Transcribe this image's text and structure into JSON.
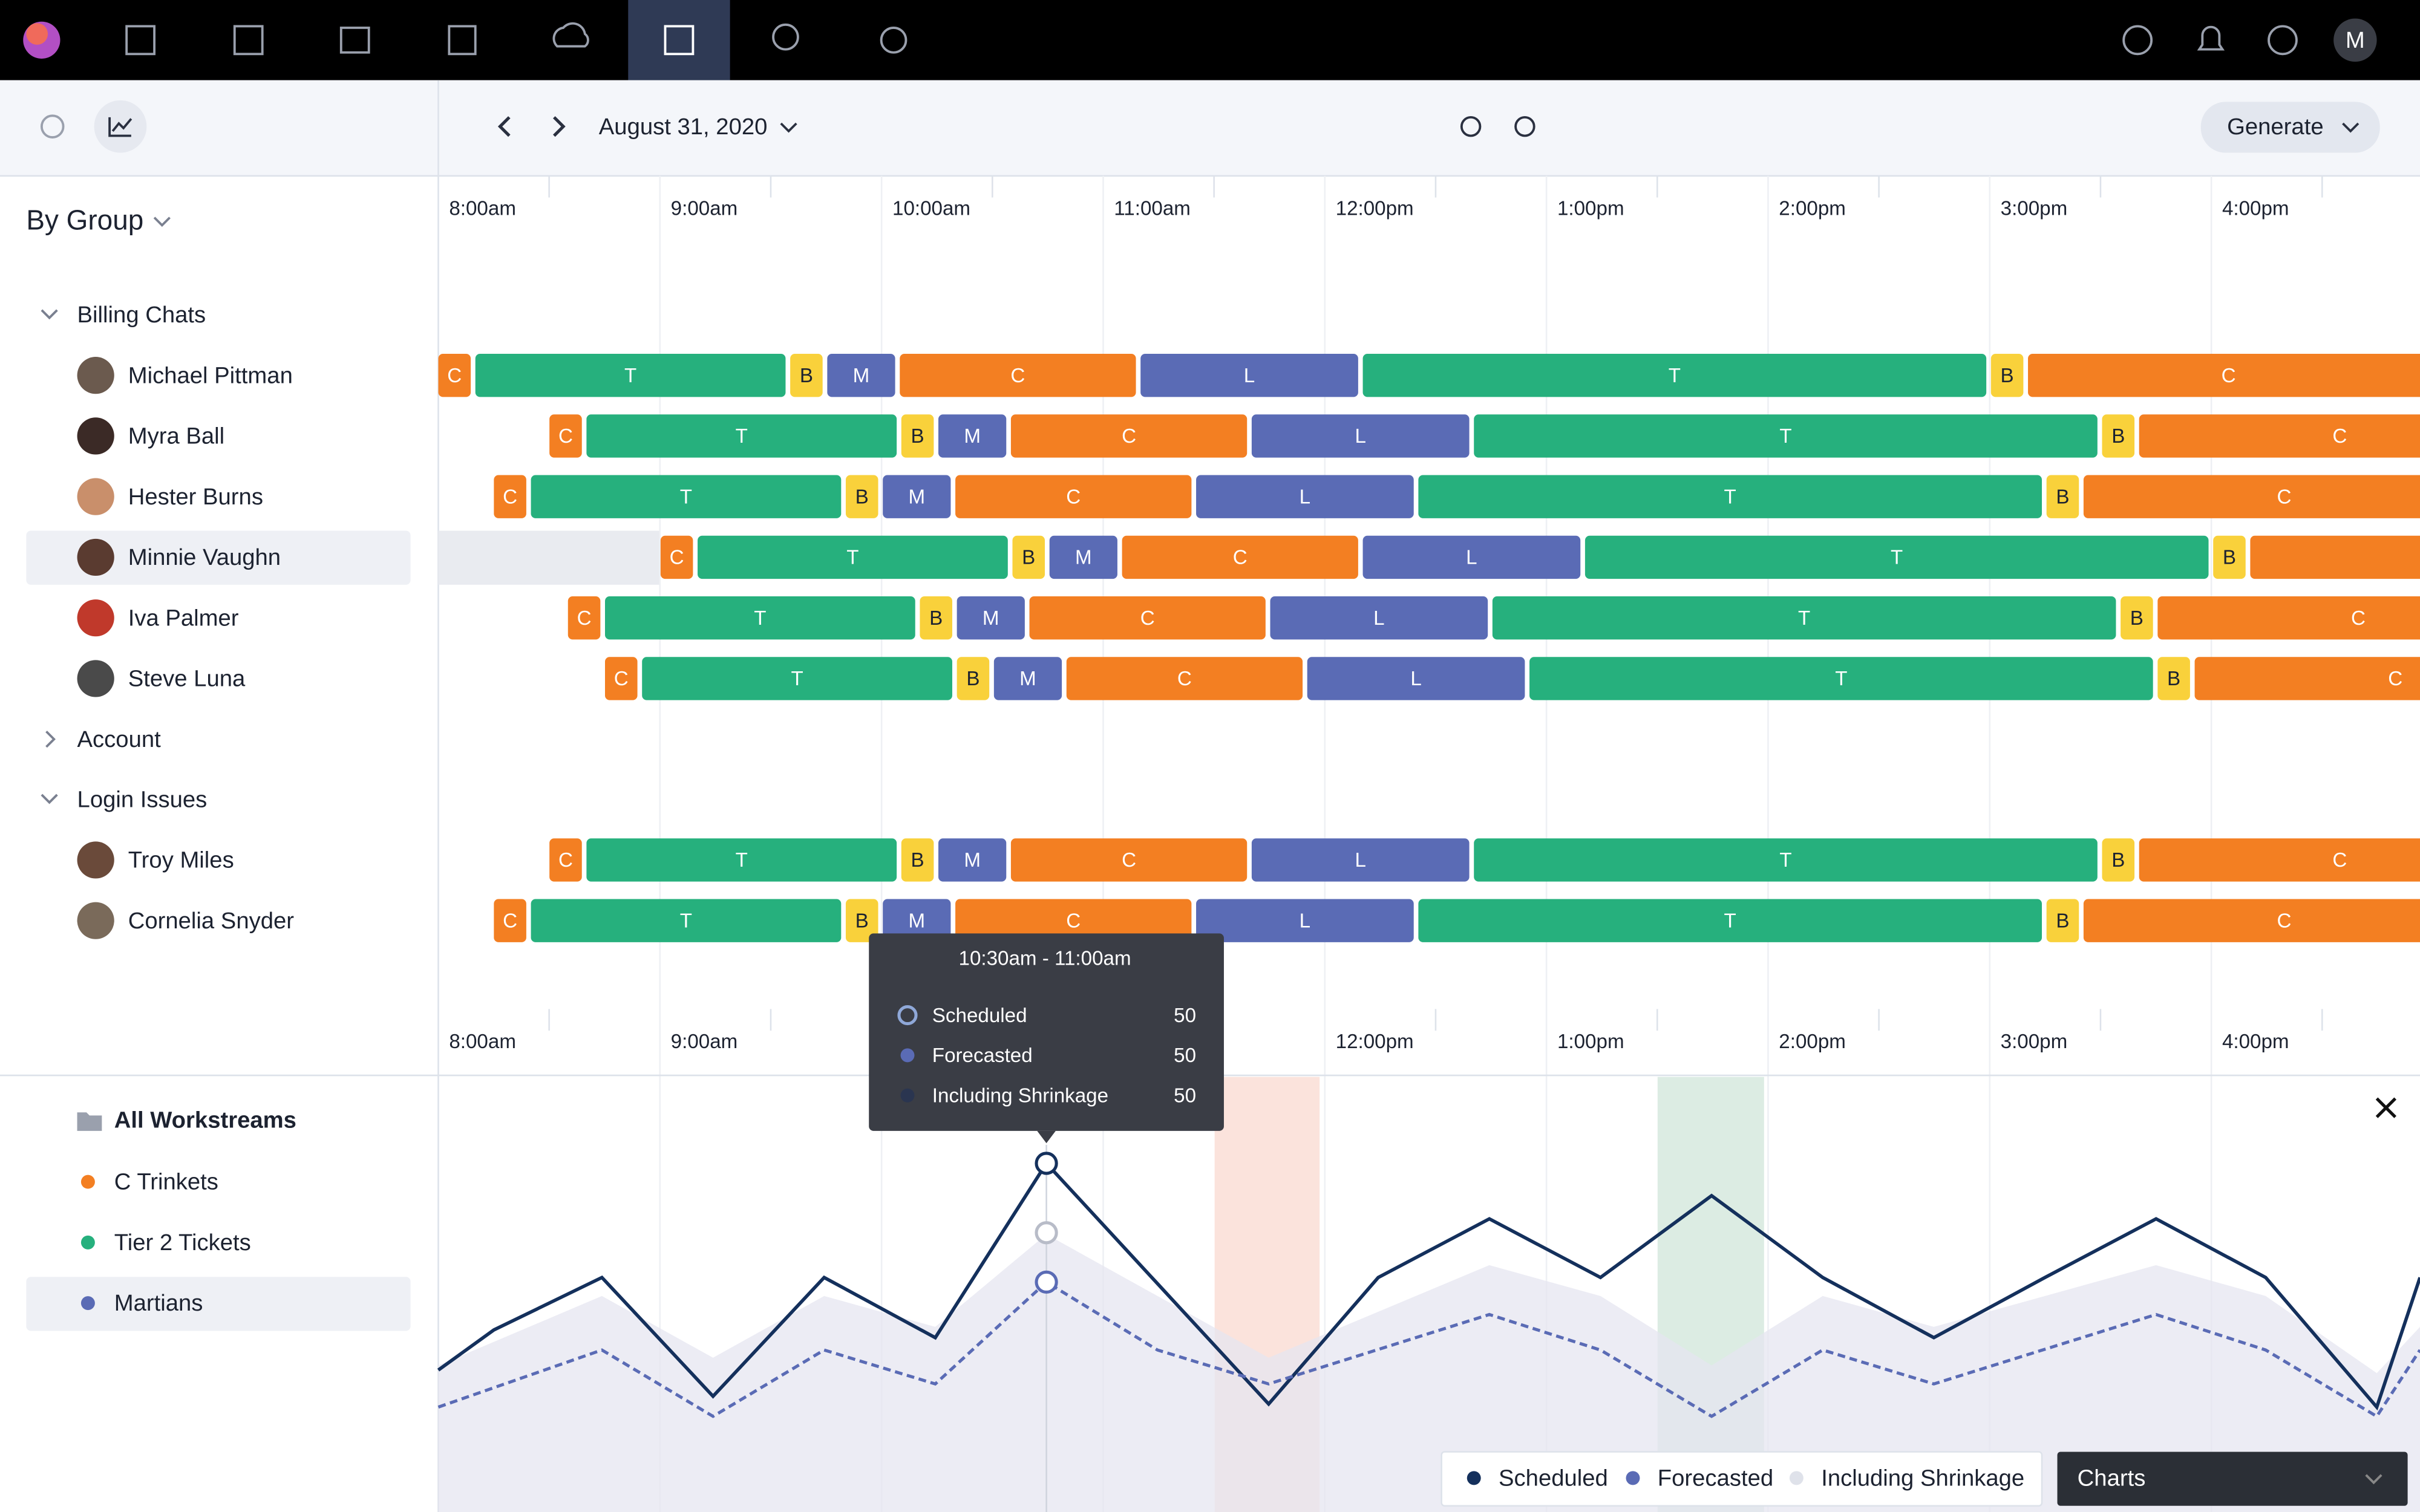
{
  "nav": {
    "avatar": "M"
  },
  "toolbar": {
    "date": "August 31, 2020",
    "generate": "Generate"
  },
  "sidebar": {
    "group_by": "By Group",
    "groups": [
      {
        "name": "Billing Chats",
        "people": [
          {
            "name": "Michael Pittman",
            "blocks": [
              "C",
              "T",
              "B",
              "M",
              "C",
              "L",
              "T",
              "B",
              "C"
            ]
          },
          {
            "name": "Myra Ball",
            "blocks": [
              "C",
              "T",
              "B",
              "M",
              "C",
              "L",
              "T",
              "B",
              "C"
            ]
          },
          {
            "name": "Hester Burns",
            "blocks": [
              "C",
              "T",
              "B",
              "M",
              "C",
              "L",
              "T",
              "B",
              "C"
            ]
          },
          {
            "name": "Minnie Vaughn",
            "blocks": [
              "C",
              "T",
              "B",
              "M",
              "C",
              "L",
              "T",
              "B",
              "C"
            ]
          },
          {
            "name": "Iva Palmer",
            "blocks": [
              "C",
              "T",
              "B",
              "M",
              "C",
              "L",
              "T",
              "B",
              "C"
            ]
          },
          {
            "name": "Steve Luna",
            "blocks": [
              "C",
              "T",
              "B",
              "M",
              "C",
              "L",
              "T",
              "B",
              "C"
            ]
          }
        ]
      },
      {
        "name": "Account",
        "people": []
      },
      {
        "name": "Login Issues",
        "people": [
          {
            "name": "Troy Miles",
            "blocks": [
              "C",
              "T",
              "B",
              "M",
              "C",
              "L",
              "T",
              "B",
              "C"
            ]
          },
          {
            "name": "Cornelia Snyder",
            "blocks": [
              "C",
              "T",
              "B",
              "M",
              "C",
              "L",
              "T",
              "B",
              "C"
            ]
          }
        ]
      }
    ]
  },
  "timeline": {
    "times": [
      "8:00am",
      "9:00am",
      "10:00am",
      "11:00am",
      "12:00pm",
      "1:00pm",
      "2:00pm",
      "3:00pm",
      "4:00pm"
    ],
    "block_colors": {
      "C": "#f37f22",
      "T": "#26b07d",
      "B": "#f9d13b",
      "M": "#5a6bb5",
      "L": "#5a6bb5"
    }
  },
  "workstreams": {
    "title": "All Workstreams",
    "items": [
      {
        "name": "C Trinkets",
        "color": "#f37f22"
      },
      {
        "name": "Tier 2 Tickets",
        "color": "#26b07d"
      },
      {
        "name": "Martians",
        "color": "#5a6bb5"
      }
    ]
  },
  "tooltip": {
    "range": "10:30am - 11:00am",
    "rows": [
      {
        "label": "Scheduled",
        "value": 50
      },
      {
        "label": "Forecasted",
        "value": 50
      },
      {
        "label": "Including Shrinkage",
        "value": 50
      }
    ]
  },
  "legend": [
    "Scheduled",
    "Forecasted",
    "Including Shrinkage"
  ],
  "view_select": "Charts"
}
